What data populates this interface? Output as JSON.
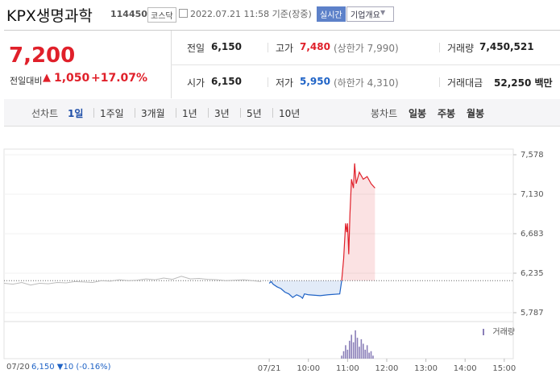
{
  "header": {
    "title": "KPX생명과학",
    "code": "114450",
    "market": "코스닥",
    "timestamp": "2022.07.21 11:58 기준(장중)",
    "realtime": "실시간",
    "company": "기업개요"
  },
  "quote": {
    "price": "7,200",
    "change_label": "전일대비",
    "change": "1,050",
    "change_pct": "+17.07%",
    "cells": [
      {
        "label": "전일",
        "value": "6,150"
      },
      {
        "label": "고가",
        "value": "7,480",
        "note": "(상한가 7,990)"
      },
      {
        "label": "거래량",
        "value": "7,450,521"
      },
      {
        "label": "시가",
        "value": "6,150"
      },
      {
        "label": "저가",
        "value": "5,950",
        "note": "(하한가 4,310)"
      },
      {
        "label": "거래대금",
        "value": "52,250 백만"
      }
    ]
  },
  "tabs": {
    "line_label": "선차트",
    "line": [
      "1일",
      "1주일",
      "3개월",
      "1년",
      "3년",
      "5년",
      "10년"
    ],
    "candle_label": "봉차트",
    "candle": [
      "일봉",
      "주봉",
      "월봉"
    ]
  },
  "footer": {
    "date": "07/20",
    "summary": "6,150 ▼10 (-0.16%)"
  },
  "chart_data": {
    "type": "line",
    "volume_label": "거래량",
    "baseline": 6150,
    "ylim": [
      5723,
      7642
    ],
    "yticks": [
      {
        "value": 5787,
        "label": "5,787"
      },
      {
        "value": 6235,
        "label": "6,235"
      },
      {
        "value": 6683,
        "label": "6,683"
      },
      {
        "value": 7130,
        "label": "7,130"
      },
      {
        "value": 7578,
        "label": "7,578"
      }
    ],
    "xlim": [
      2.23,
      15.23
    ],
    "xticks": [
      {
        "value": 9,
        "label": "07/21"
      },
      {
        "value": 10,
        "label": "10:00"
      },
      {
        "value": 11,
        "label": "11:00"
      },
      {
        "value": 12,
        "label": "12:00"
      },
      {
        "value": 13,
        "label": "13:00"
      },
      {
        "value": 14,
        "label": "14:00"
      },
      {
        "value": 15,
        "label": "15:00"
      }
    ],
    "previous": {
      "color": "#bbbbbb",
      "values": [
        6120,
        6110,
        6130,
        6100,
        6120,
        6115,
        6130,
        6125,
        6140,
        6135,
        6130,
        6150,
        6145,
        6160,
        6150,
        6155,
        6170,
        6160,
        6180,
        6165,
        6200,
        6170,
        6175,
        6165,
        6160,
        6150,
        6155,
        6160,
        6150,
        6140
      ]
    },
    "series": [
      {
        "color": "#e0202a",
        "below_color": "#1f63c6",
        "x": [
          9.0,
          9.05,
          9.1,
          9.2,
          9.3,
          9.4,
          9.5,
          9.6,
          9.7,
          9.8,
          9.85,
          9.9,
          10.0,
          10.3,
          10.5,
          10.8,
          10.85,
          10.9,
          10.95,
          10.98,
          11.0,
          11.03,
          11.06,
          11.1,
          11.15,
          11.18,
          11.22,
          11.3,
          11.4,
          11.5,
          11.6,
          11.7
        ],
        "values": [
          6120,
          6140,
          6110,
          6080,
          6060,
          6020,
          6000,
          5960,
          5990,
          5970,
          5950,
          6000,
          5990,
          5980,
          5990,
          6000,
          6150,
          6400,
          6800,
          6700,
          6800,
          6450,
          6900,
          7300,
          7200,
          7480,
          7250,
          7380,
          7300,
          7330,
          7250,
          7200
        ]
      }
    ],
    "volume": {
      "color": "#8a7fb8",
      "vlim": [
        0,
        100
      ],
      "x": [
        10.85,
        10.9,
        10.95,
        11.0,
        11.05,
        11.1,
        11.15,
        11.2,
        11.25,
        11.3,
        11.35,
        11.4,
        11.45,
        11.5,
        11.55,
        11.6,
        11.65
      ],
      "values": [
        10,
        25,
        45,
        30,
        60,
        80,
        55,
        95,
        70,
        40,
        65,
        50,
        30,
        45,
        20,
        25,
        10
      ]
    }
  }
}
